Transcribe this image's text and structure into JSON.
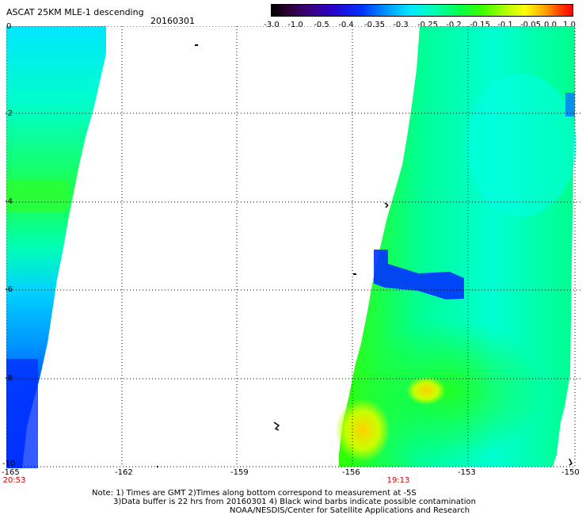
{
  "header": {
    "title": "ASCAT 25KM MLE-1 descending",
    "date": "20160301"
  },
  "colorbar": {
    "labels": [
      "-3.0",
      "-1.0",
      "-0.5",
      "-0.4",
      "-0.35",
      "-0.3",
      "-0.25",
      "-0.2",
      "-0.15",
      "-0.1",
      "-0.05",
      "0.0",
      "1.0"
    ]
  },
  "map": {
    "x_ticks": [
      "-165",
      "-162",
      "-159",
      "-156",
      "-153",
      "-150"
    ],
    "y_ticks": [
      "0",
      "-2",
      "-4",
      "-6",
      "-8",
      "-10"
    ],
    "x_range": [
      -165,
      -150
    ],
    "y_range": [
      0,
      -10
    ],
    "grid": "dotted",
    "colors": {
      "low": "#0028ff",
      "mid_low": "#00dcff",
      "mid": "#00ffc8",
      "mid_high": "#32ff00",
      "high": "#ffdc00"
    }
  },
  "times": {
    "left": "20:53",
    "center": "19:13"
  },
  "notes": {
    "line1": "Note: 1) Times are GMT 2)Times along bottom correspond to measurement at -5S",
    "line2": "3)Data buffer is 22 hrs from 20160301 4) Black wind barbs indicate possible contamination",
    "line3": "NOAA/NESDIS/Center for Satellite Applications and Research"
  }
}
